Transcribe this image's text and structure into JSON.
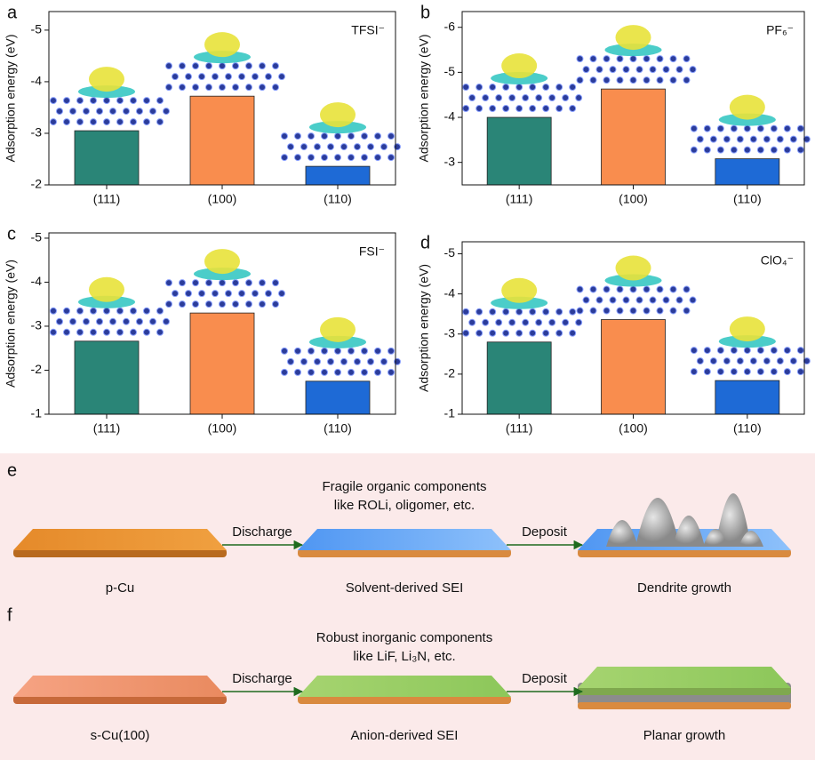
{
  "chart_data": [
    {
      "type": "bar",
      "panel": "a",
      "annotation": "TFSI⁻",
      "ylabel": "Adsorption energy (eV)",
      "categories": [
        "(111)",
        "(100)",
        "(110)"
      ],
      "values": [
        -3.05,
        -3.72,
        -2.36
      ],
      "colors": [
        "#2a8577",
        "#f98d4e",
        "#1e6ad6"
      ],
      "ylim": [
        -2,
        -5.36
      ],
      "yticks": [
        -2,
        -3,
        -4,
        -5
      ]
    },
    {
      "type": "bar",
      "panel": "b",
      "annotation": "PF₆⁻",
      "ylabel": "Adsorption energy (eV)",
      "categories": [
        "(111)",
        "(100)",
        "(110)"
      ],
      "values": [
        -4.0,
        -4.63,
        -3.08
      ],
      "colors": [
        "#2a8577",
        "#f98d4e",
        "#1e6ad6"
      ],
      "ylim": [
        -2.5,
        -6.35
      ],
      "yticks": [
        -3,
        -4,
        -5,
        -6
      ]
    },
    {
      "type": "bar",
      "panel": "c",
      "annotation": "FSI⁻",
      "ylabel": "Adsorption energy (eV)",
      "categories": [
        "(111)",
        "(100)",
        "(110)"
      ],
      "values": [
        -2.66,
        -3.3,
        -1.75
      ],
      "colors": [
        "#2a8577",
        "#f98d4e",
        "#1e6ad6"
      ],
      "ylim": [
        -1,
        -5.12
      ],
      "yticks": [
        -1,
        -2,
        -3,
        -4,
        -5
      ]
    },
    {
      "type": "bar",
      "panel": "d",
      "annotation": "ClO₄⁻",
      "ylabel": "Adsorption energy (eV)",
      "categories": [
        "(111)",
        "(100)",
        "(110)"
      ],
      "values": [
        -2.8,
        -3.36,
        -1.84
      ],
      "colors": [
        "#2a8577",
        "#f98d4e",
        "#1e6ad6"
      ],
      "ylim": [
        -1,
        -5.3
      ],
      "yticks": [
        -1,
        -2,
        -3,
        -4,
        -5
      ]
    }
  ],
  "schematic": [
    {
      "panel": "e",
      "caption": [
        "Fragile organic components",
        "like ROLi, oligomer, etc."
      ],
      "stages": [
        "p-Cu",
        "Solvent-derived SEI",
        "Dendrite growth"
      ],
      "arrows": [
        "Discharge",
        "Deposit"
      ]
    },
    {
      "panel": "f",
      "caption": [
        "Robust inorganic components",
        "like LiF, Li₃N, etc."
      ],
      "stages": [
        "s-Cu(100)",
        "Anion-derived SEI",
        "Planar growth"
      ],
      "arrows": [
        "Discharge",
        "Deposit"
      ]
    }
  ]
}
